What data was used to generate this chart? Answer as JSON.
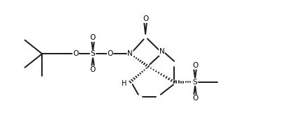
{
  "background_color": "#ffffff",
  "line_color": "#1a1a1a",
  "line_width": 1.4,
  "text_color": "#000000",
  "fig_width": 4.12,
  "fig_height": 1.78,
  "dpi": 100,
  "xlim": [
    0,
    10
  ],
  "ylim": [
    0,
    4.5
  ],
  "font_size": 7.5
}
